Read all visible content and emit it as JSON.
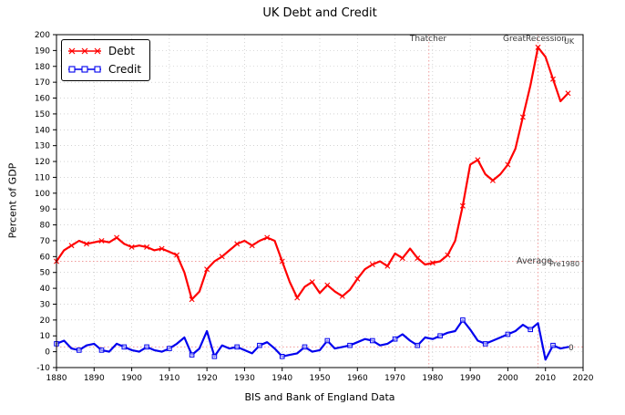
{
  "title": "UK Debt and Credit",
  "xlabel": "BIS and Bank of England Data",
  "ylabel": "Percent of GDP",
  "annotations_text": {
    "thatcher": "Thatcher",
    "great_recession": "GreatRecession",
    "uk": "UK",
    "average": "Average",
    "pre1980": "Pre1980",
    "zero": "0"
  },
  "colors": {
    "debt": "#ff0000",
    "credit": "#0000ee",
    "annotation_line": "#f09a9a",
    "grid": "#b8b8b8"
  },
  "chart_data": {
    "type": "line",
    "title": "UK Debt and Credit",
    "xlabel": "BIS and Bank of England Data",
    "ylabel": "Percent of GDP",
    "xlim": [
      1880,
      2020
    ],
    "ylim": [
      -10,
      200
    ],
    "xtick_step": 10,
    "ytick_step": 10,
    "grid": true,
    "legend_position": "upper left",
    "x": [
      1880,
      1882,
      1884,
      1886,
      1888,
      1890,
      1892,
      1894,
      1896,
      1898,
      1900,
      1902,
      1904,
      1906,
      1908,
      1910,
      1912,
      1914,
      1916,
      1918,
      1920,
      1922,
      1924,
      1926,
      1928,
      1930,
      1932,
      1934,
      1936,
      1938,
      1940,
      1942,
      1944,
      1946,
      1948,
      1950,
      1952,
      1954,
      1956,
      1958,
      1960,
      1962,
      1964,
      1966,
      1968,
      1970,
      1972,
      1974,
      1976,
      1978,
      1980,
      1982,
      1984,
      1986,
      1988,
      1990,
      1992,
      1994,
      1996,
      1998,
      2000,
      2002,
      2004,
      2006,
      2008,
      2010,
      2012,
      2014,
      2016
    ],
    "series": [
      {
        "name": "Debt",
        "color": "#ff0000",
        "marker": "x",
        "marker_every": 2,
        "values": [
          57,
          64,
          67,
          70,
          68,
          69,
          70,
          69,
          72,
          68,
          66,
          67,
          66,
          64,
          65,
          63,
          61,
          50,
          33,
          38,
          52,
          57,
          60,
          64,
          68,
          70,
          67,
          70,
          72,
          70,
          57,
          44,
          34,
          41,
          44,
          37,
          42,
          38,
          35,
          39,
          46,
          52,
          55,
          57,
          54,
          62,
          59,
          65,
          59,
          55,
          56,
          57,
          61,
          70,
          92,
          118,
          121,
          112,
          108,
          112,
          118,
          128,
          148,
          168,
          192,
          186,
          172,
          158,
          163
        ]
      },
      {
        "name": "Credit",
        "color": "#0000ee",
        "marker": "square",
        "marker_every": 3,
        "values": [
          5,
          7,
          2,
          1,
          4,
          5,
          1,
          0,
          5,
          3,
          1,
          0,
          3,
          1,
          0,
          2,
          5,
          9,
          -2,
          2,
          13,
          -3,
          4,
          2,
          3,
          1,
          -1,
          4,
          6,
          2,
          -3,
          -2,
          -1,
          3,
          0,
          1,
          7,
          2,
          3,
          4,
          6,
          8,
          7,
          4,
          5,
          8,
          11,
          7,
          4,
          9,
          8,
          10,
          12,
          13,
          20,
          14,
          7,
          5,
          7,
          9,
          11,
          13,
          17,
          14,
          18,
          -5,
          4,
          2,
          3
        ]
      }
    ],
    "annotations": [
      {
        "type": "vline",
        "x": 1979,
        "label": "Thatcher"
      },
      {
        "type": "vline",
        "x": 2008,
        "label": "GreatRecession"
      },
      {
        "type": "hline",
        "y": 57,
        "label": "Average Pre1980"
      },
      {
        "type": "hline",
        "y": 3,
        "label": "0"
      },
      {
        "type": "text",
        "x": 2009,
        "y": 192,
        "text": "UK"
      }
    ]
  }
}
